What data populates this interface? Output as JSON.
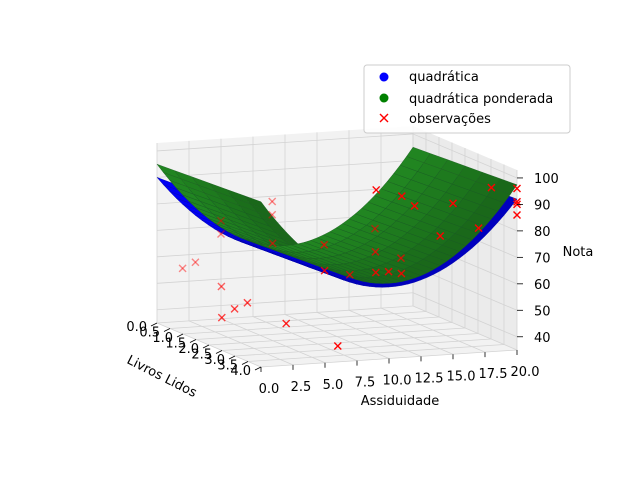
{
  "chart_data": {
    "type": "surface3d",
    "title": "",
    "axes": {
      "x": {
        "label": "Livros Lidos",
        "ticks": [
          "0.0",
          "0.5",
          "1.0",
          "1.5",
          "2.0",
          "2.5",
          "3.0",
          "3.5",
          "4.0"
        ],
        "range": [
          0,
          4
        ]
      },
      "y": {
        "label": "Assiduidade",
        "ticks": [
          "0.0",
          "2.5",
          "5.0",
          "7.5",
          "10.0",
          "12.5",
          "15.0",
          "17.5",
          "20.0"
        ],
        "range": [
          0,
          20
        ]
      },
      "z": {
        "label": "Nota",
        "ticks": [
          "40",
          "50",
          "60",
          "70",
          "80",
          "90",
          "100"
        ],
        "range": [
          35,
          103
        ]
      }
    },
    "grid": true,
    "legend": {
      "position": "top-right",
      "entries": [
        {
          "label": "quadrática",
          "marker": "circle",
          "color": "#0000ff"
        },
        {
          "label": "quadrática ponderada",
          "marker": "circle",
          "color": "#008000"
        },
        {
          "label": "observações",
          "marker": "x",
          "color": "#ff0000"
        }
      ]
    },
    "series": [
      {
        "name": "quadrática",
        "kind": "surface",
        "color": "#0000ff",
        "formula": "z = 60 + 0.3*(a-10)^2 + 0.5*b",
        "a_range": [
          0,
          20
        ],
        "b_range": [
          0,
          4
        ]
      },
      {
        "name": "quadrática ponderada",
        "kind": "surface",
        "color": "#228b22",
        "formula": "z = 61 + 0.34*(a-10)^2 + 0.6*b",
        "a_range": [
          0,
          20
        ],
        "b_range": [
          0,
          4
        ]
      },
      {
        "name": "observações",
        "kind": "scatter",
        "marker": "x",
        "color": "#ff0000",
        "points": [
          {
            "assiduidade": 20,
            "livros": 4,
            "nota": 96
          },
          {
            "assiduidade": 20,
            "livros": 4,
            "nota": 91
          },
          {
            "assiduidade": 20,
            "livros": 4,
            "nota": 90
          },
          {
            "assiduidade": 20,
            "livros": 4,
            "nota": 86
          },
          {
            "assiduidade": 18,
            "livros": 4,
            "nota": 97
          },
          {
            "assiduidade": 15,
            "livros": 4,
            "nota": 92
          },
          {
            "assiduidade": 14,
            "livros": 4,
            "nota": 80
          },
          {
            "assiduidade": 17,
            "livros": 4,
            "nota": 82
          },
          {
            "assiduidade": 11,
            "livros": 4,
            "nota": 96
          },
          {
            "assiduidade": 12,
            "livros": 4,
            "nota": 92
          },
          {
            "assiduidade": 9,
            "livros": 4,
            "nota": 99
          },
          {
            "assiduidade": 15,
            "livros": 1,
            "nota": 70
          },
          {
            "assiduidade": 13,
            "livros": 2,
            "nota": 66
          },
          {
            "assiduidade": 15,
            "livros": 2,
            "nota": 63
          },
          {
            "assiduidade": 13,
            "livros": 3,
            "nota": 62
          },
          {
            "assiduidade": 12,
            "livros": 3,
            "nota": 63
          },
          {
            "assiduidade": 11,
            "livros": 3,
            "nota": 63
          },
          {
            "assiduidade": 11,
            "livros": 2,
            "nota": 58
          },
          {
            "assiduidade": 9,
            "livros": 0,
            "nota": 78
          },
          {
            "assiduidade": 9,
            "livros": 0,
            "nota": 73
          },
          {
            "assiduidade": 9,
            "livros": 2,
            "nota": 70
          },
          {
            "assiduidade": 7,
            "livros": 1,
            "nota": 67
          },
          {
            "assiduidade": 7,
            "livros": 3,
            "nota": 65
          },
          {
            "assiduidade": 5,
            "livros": 0,
            "nota": 72
          },
          {
            "assiduidade": 5,
            "livros": 0,
            "nota": 67
          },
          {
            "assiduidade": 3,
            "livros": 0,
            "nota": 57
          },
          {
            "assiduidade": 2,
            "livros": 0,
            "nota": 55
          },
          {
            "assiduidade": 3,
            "livros": 1,
            "nota": 52
          },
          {
            "assiduidade": 3,
            "livros": 2,
            "nota": 50
          },
          {
            "assiduidade": 2,
            "livros": 2,
            "nota": 48
          },
          {
            "assiduidade": 1,
            "livros": 2,
            "nota": 45
          },
          {
            "assiduidade": 4,
            "livros": 3,
            "nota": 46
          },
          {
            "assiduidade": 6,
            "livros": 4,
            "nota": 41
          }
        ]
      }
    ]
  }
}
